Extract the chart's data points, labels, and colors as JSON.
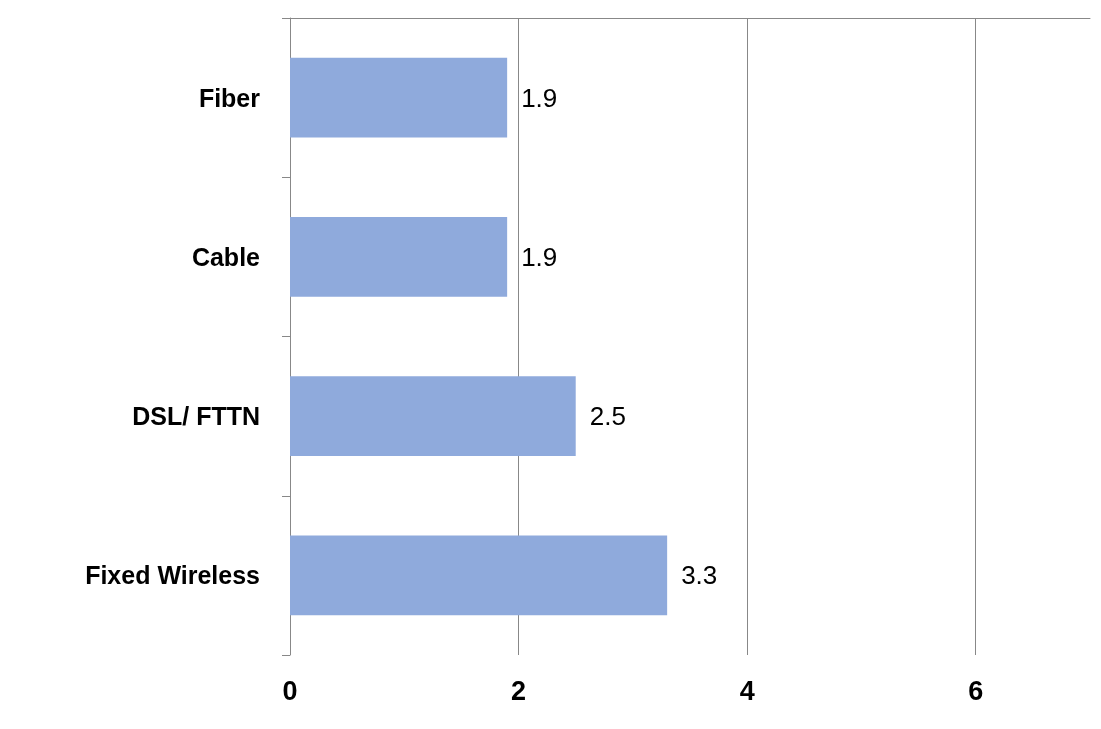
{
  "chart_data": {
    "type": "bar",
    "orientation": "horizontal",
    "categories": [
      "Fiber",
      "Cable",
      "DSL/ FTTN",
      "Fixed Wireless"
    ],
    "values": [
      1.9,
      1.9,
      2.5,
      3.3
    ],
    "color": "#8faadc",
    "data_labels": true,
    "xlim": [
      0,
      7
    ],
    "xticks": [
      0,
      2,
      4,
      6
    ],
    "grid": "x"
  }
}
